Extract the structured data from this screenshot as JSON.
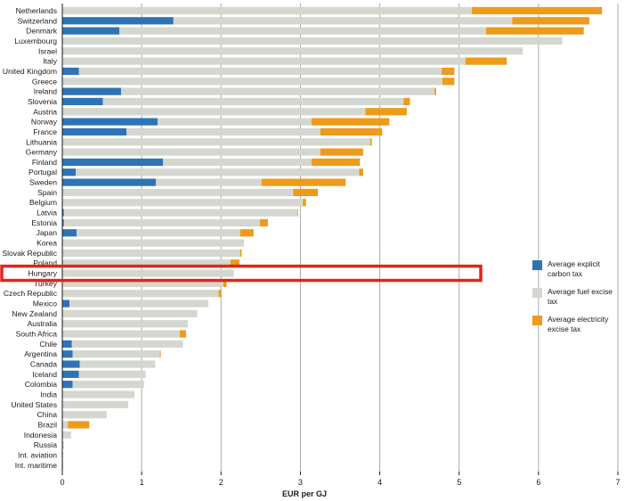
{
  "colors": {
    "carbon": "#2E74B5",
    "fuel": "#D4D7D0",
    "electricity": "#EE9A1B",
    "highlight": "#E1251B",
    "grid": "#A9A9A9"
  },
  "legend": {
    "carbon": "Average explicit carbon tax",
    "fuel": "Average fuel excise tax",
    "electricity": "Average electricity excise tax"
  },
  "chart_data": {
    "type": "bar",
    "orientation": "horizontal",
    "stacked": true,
    "title": "",
    "xlabel": "EUR per GJ",
    "ylabel": "",
    "xlim": [
      0,
      7
    ],
    "xticks": [
      "0",
      "1",
      "2",
      "3",
      "4",
      "5",
      "6",
      "7"
    ],
    "grid": true,
    "legend_position": "right",
    "highlighted_category": "Hungary",
    "categories": [
      "Netherlands",
      "Switzerland",
      "Denmark",
      "Luxembourg",
      "Israel",
      "Italy",
      "United Kingdom",
      "Greece",
      "Ireland",
      "Slovenia",
      "Austria",
      "Norway",
      "France",
      "Lithuania",
      "Germany",
      "Finland",
      "Portugal",
      "Sweden",
      "Spain",
      "Belgium",
      "Latvia",
      "Estonia",
      "Japan",
      "Korea",
      "Slovak Republic",
      "Poland",
      "Hungary",
      "Turkey",
      "Czech Republic",
      "Mexico",
      "New Zealand",
      "Australia",
      "South Africa",
      "Chile",
      "Argentina",
      "Canada",
      "Iceland",
      "Colombia",
      "India",
      "United States",
      "China",
      "Brazil",
      "Indonesia",
      "Russia",
      "Int. aviation",
      "Int. maritime"
    ],
    "series": [
      {
        "name": "Average explicit carbon tax",
        "values": [
          0,
          1.4,
          0.72,
          0,
          0,
          0,
          0.21,
          0,
          0.74,
          0.51,
          0,
          1.2,
          0.81,
          0,
          0,
          1.27,
          0.17,
          1.18,
          0,
          0,
          0.02,
          0.02,
          0.18,
          0,
          0,
          0,
          0,
          0,
          0,
          0.09,
          0,
          0,
          0,
          0.12,
          0.13,
          0.22,
          0.21,
          0.13,
          0,
          0,
          0,
          0,
          0,
          0,
          0,
          0
        ]
      },
      {
        "name": "Average fuel excise tax",
        "values": [
          5.16,
          4.27,
          4.62,
          6.3,
          5.8,
          5.08,
          4.57,
          4.79,
          3.95,
          3.79,
          3.82,
          1.94,
          2.44,
          3.88,
          3.25,
          1.87,
          3.57,
          1.33,
          2.91,
          3.03,
          2.94,
          2.47,
          2.06,
          2.29,
          2.24,
          2.12,
          2.16,
          2.03,
          1.97,
          1.75,
          1.7,
          1.58,
          1.48,
          1.4,
          1.1,
          0.95,
          0.84,
          0.9,
          0.91,
          0.83,
          0.56,
          0.07,
          0.11,
          0.02,
          0.01,
          0.01
        ]
      },
      {
        "name": "Average electricity excise tax",
        "values": [
          1.64,
          0.97,
          1.23,
          0,
          0,
          0.52,
          0.16,
          0.15,
          0.02,
          0.08,
          0.52,
          0.98,
          0.78,
          0.02,
          0.54,
          0.61,
          0.05,
          1.06,
          0.31,
          0.04,
          0.01,
          0.1,
          0.17,
          0,
          0.02,
          0.11,
          0,
          0.04,
          0.03,
          0,
          0,
          0,
          0.08,
          0,
          0.01,
          0,
          0,
          0,
          0,
          0,
          0,
          0.27,
          0,
          0,
          0,
          0
        ]
      }
    ]
  }
}
